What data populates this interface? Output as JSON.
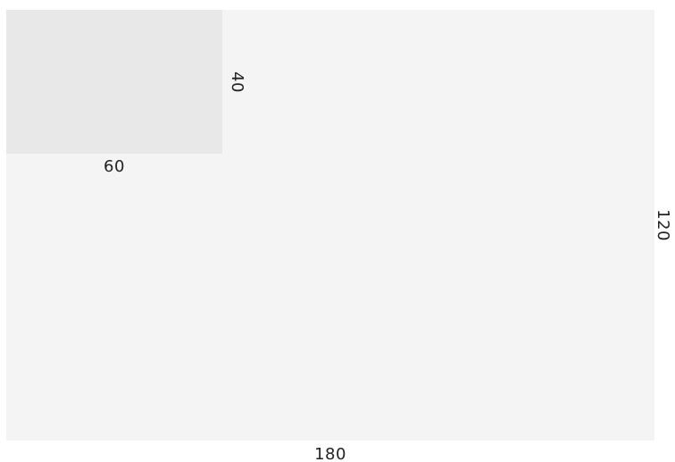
{
  "outer_rectangle": {
    "width_label": "180",
    "height_label": "120",
    "fill_color": "#f4f4f4"
  },
  "inner_rectangle": {
    "width_label": "60",
    "height_label": "40",
    "fill_color": "#e8e8e8"
  }
}
